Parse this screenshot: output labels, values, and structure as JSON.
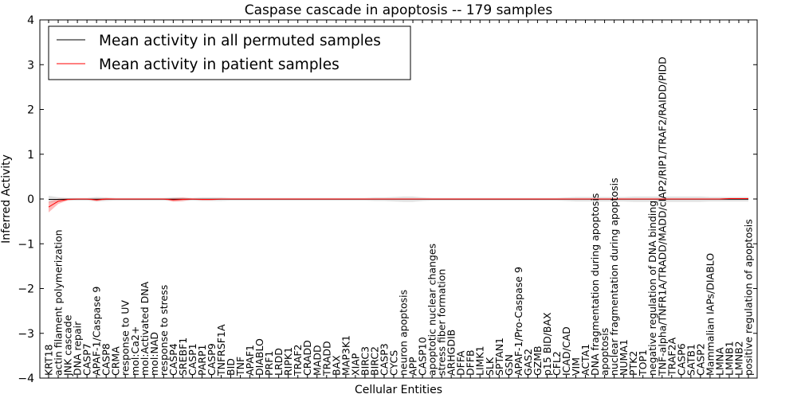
{
  "chart_data": {
    "type": "line",
    "title": "Caspase cascade in apoptosis -- 179 samples",
    "xlabel": "Cellular Entities",
    "ylabel": "Inferred Activity",
    "ylim": [
      -4,
      4
    ],
    "yticks": [
      "−4",
      "−3",
      "−2",
      "−1",
      "0",
      "1",
      "2",
      "3",
      "4"
    ],
    "legend_position": "top-left",
    "categories": [
      "KRT18",
      "actin filament polymerization",
      "JNK cascade",
      "DNA repair",
      "CASP7",
      "APAF-1/Caspase 9",
      "CASP8",
      "CRMA",
      "response to UV",
      "mol:Ca2+",
      "mol:Activated DNA",
      "mol:NAD",
      "response to stress",
      "CASP4",
      "SREBF1",
      "CASP1",
      "PARP1",
      "CASP9",
      "TNFRSF1A",
      "BID",
      "TNF",
      "APAF1",
      "DIABLO",
      "PRF1",
      "LRDD",
      "RIPK1",
      "TRAF2",
      "CRADD",
      "MADD",
      "TRADD",
      "BAX",
      "MAP3K1",
      "XIAP",
      "BIRC3",
      "BIRC2",
      "CASP3",
      "CYCS",
      "neuron apoptosis",
      "APP",
      "CASP10",
      "apoptotic nuclear changes",
      "stress fiber formation",
      "ARHGDIB",
      "DFFA",
      "DFFB",
      "LIMK1",
      "SLK",
      "SPTAN1",
      "GSN",
      "APAF-1/Pro-Caspase 9",
      "GAS2",
      "GZMB",
      "p15 BID/BAX",
      "CFL2",
      "ICAD/CAD",
      "VIM",
      "ACTA1",
      "DNA fragmentation during apoptosis",
      "apoptosis",
      "nuclear fragmentation during apoptosis",
      "NUMA1",
      "PTK2",
      "TOP1",
      "negative regulation of DNA binding",
      "TNF-alpha/TNFR1A/TRADD/MADD/cIAP2/RIP1/TRAF2/RAIDD/PIDD",
      "TRAF2A",
      "CASP6",
      "SATB1",
      "CASP2",
      "Mammalian IAPs/DIABLO",
      "LMNA",
      "LMNB1",
      "LMNB2",
      "positive regulation of apoptosis"
    ],
    "series": [
      {
        "name": "Mean activity in all permuted samples",
        "color": "#000000",
        "band_color": "#c8c8c8",
        "values": [
          -0.01,
          -0.01,
          -0.005,
          -0.005,
          -0.005,
          -0.005,
          -0.005,
          -0.005,
          -0.005,
          -0.005,
          -0.005,
          -0.005,
          -0.005,
          -0.005,
          -0.005,
          -0.005,
          -0.005,
          -0.005,
          -0.005,
          -0.005,
          -0.005,
          -0.005,
          -0.005,
          -0.005,
          -0.005,
          -0.005,
          -0.005,
          -0.005,
          -0.005,
          -0.005,
          -0.005,
          -0.005,
          -0.005,
          -0.005,
          -0.005,
          -0.005,
          -0.005,
          -0.005,
          -0.005,
          -0.005,
          -0.005,
          -0.005,
          -0.005,
          -0.005,
          -0.005,
          -0.005,
          -0.005,
          -0.005,
          -0.005,
          -0.005,
          -0.005,
          -0.005,
          -0.005,
          -0.005,
          -0.005,
          -0.005,
          -0.005,
          -0.005,
          -0.005,
          -0.005,
          -0.005,
          -0.005,
          -0.005,
          -0.005,
          -0.005,
          -0.005,
          -0.005,
          -0.005,
          -0.005,
          -0.005,
          -0.005,
          -0.005,
          -0.005,
          -0.005
        ],
        "spread": [
          0.08,
          0.05,
          0.03,
          0.03,
          0.03,
          0.05,
          0.04,
          0.03,
          0.03,
          0.03,
          0.03,
          0.03,
          0.03,
          0.04,
          0.04,
          0.03,
          0.04,
          0.04,
          0.04,
          0.03,
          0.03,
          0.03,
          0.03,
          0.03,
          0.03,
          0.03,
          0.03,
          0.03,
          0.03,
          0.03,
          0.03,
          0.03,
          0.03,
          0.03,
          0.04,
          0.04,
          0.05,
          0.06,
          0.06,
          0.04,
          0.03,
          0.03,
          0.03,
          0.03,
          0.03,
          0.03,
          0.03,
          0.03,
          0.03,
          0.03,
          0.03,
          0.03,
          0.03,
          0.03,
          0.04,
          0.05,
          0.05,
          0.05,
          0.05,
          0.05,
          0.05,
          0.06,
          0.06,
          0.06,
          0.06,
          0.06,
          0.06,
          0.06,
          0.06,
          0.05,
          0.05,
          0.05,
          0.05,
          0.05
        ]
      },
      {
        "name": "Mean activity in patient samples",
        "color": "#ff0000",
        "band_color": "#ff8080",
        "values": [
          -0.18,
          -0.05,
          -0.01,
          0.0,
          0.0,
          -0.02,
          0.0,
          0.0,
          0.0,
          0.0,
          0.0,
          0.0,
          0.0,
          -0.02,
          -0.01,
          0.0,
          -0.01,
          -0.01,
          0.0,
          0.0,
          0.0,
          0.0,
          0.0,
          0.0,
          0.0,
          0.0,
          0.0,
          0.0,
          0.0,
          0.0,
          0.0,
          0.0,
          0.0,
          0.0,
          0.0,
          0.0,
          0.0,
          0.0,
          0.0,
          0.0,
          0.0,
          0.0,
          0.0,
          0.0,
          0.0,
          0.0,
          0.0,
          0.0,
          0.0,
          0.0,
          0.0,
          0.0,
          0.0,
          0.0,
          0.0,
          0.0,
          0.0,
          0.0,
          0.0,
          0.0,
          0.0,
          0.0,
          0.0,
          0.0,
          0.0,
          0.0,
          0.0,
          0.0,
          0.0,
          0.0,
          0.0,
          0.01,
          0.01,
          0.01
        ],
        "spread": [
          0.12,
          0.06,
          0.02,
          0.01,
          0.01,
          0.03,
          0.02,
          0.01,
          0.01,
          0.01,
          0.01,
          0.01,
          0.01,
          0.04,
          0.04,
          0.01,
          0.02,
          0.02,
          0.01,
          0.01,
          0.01,
          0.01,
          0.01,
          0.01,
          0.01,
          0.01,
          0.01,
          0.01,
          0.01,
          0.01,
          0.01,
          0.01,
          0.01,
          0.01,
          0.01,
          0.01,
          0.01,
          0.01,
          0.01,
          0.01,
          0.01,
          0.01,
          0.01,
          0.01,
          0.01,
          0.01,
          0.01,
          0.01,
          0.01,
          0.01,
          0.01,
          0.01,
          0.01,
          0.01,
          0.01,
          0.01,
          0.01,
          0.01,
          0.01,
          0.01,
          0.01,
          0.01,
          0.01,
          0.01,
          0.01,
          0.01,
          0.01,
          0.01,
          0.01,
          0.01,
          0.01,
          0.01,
          0.01,
          0.01
        ]
      }
    ]
  }
}
